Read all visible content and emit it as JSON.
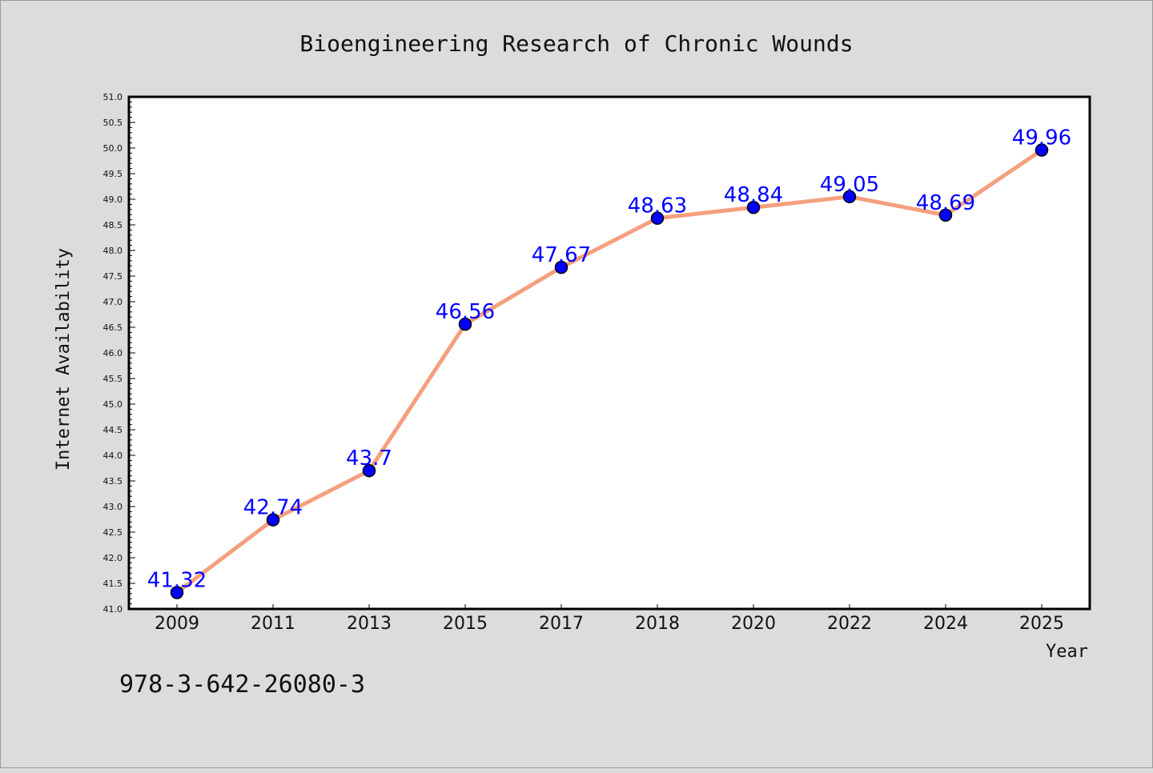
{
  "chart_data": {
    "type": "line",
    "title": "Bioengineering Research of Chronic Wounds",
    "xlabel": "Year",
    "ylabel": "Internet Availability",
    "categories": [
      "2009",
      "2011",
      "2013",
      "2015",
      "2017",
      "2018",
      "2020",
      "2022",
      "2024",
      "2025"
    ],
    "series": [
      {
        "values": [
          41.32,
          42.74,
          43.7,
          46.56,
          47.67,
          48.63,
          48.84,
          49.05,
          48.69,
          49.96
        ],
        "labels": [
          "41.32",
          "42.74",
          "43.7",
          "46.56",
          "47.67",
          "48.63",
          "48.84",
          "49.05",
          "48.69",
          "49.96"
        ],
        "line_color": "#f4a07e",
        "marker_color": "#0000ff"
      }
    ],
    "ylim": [
      41.0,
      51.0
    ],
    "y_ticks": [
      "41.0",
      "41.5",
      "42.0",
      "42.5",
      "43.0",
      "43.5",
      "44.0",
      "44.5",
      "45.0",
      "45.5",
      "46.0",
      "46.5",
      "47.0",
      "47.5",
      "48.0",
      "48.5",
      "49.0",
      "49.5",
      "50.0",
      "50.5",
      "51.0"
    ],
    "grid": false,
    "legend": "none"
  },
  "footer_text": "978-3-642-26080-3"
}
